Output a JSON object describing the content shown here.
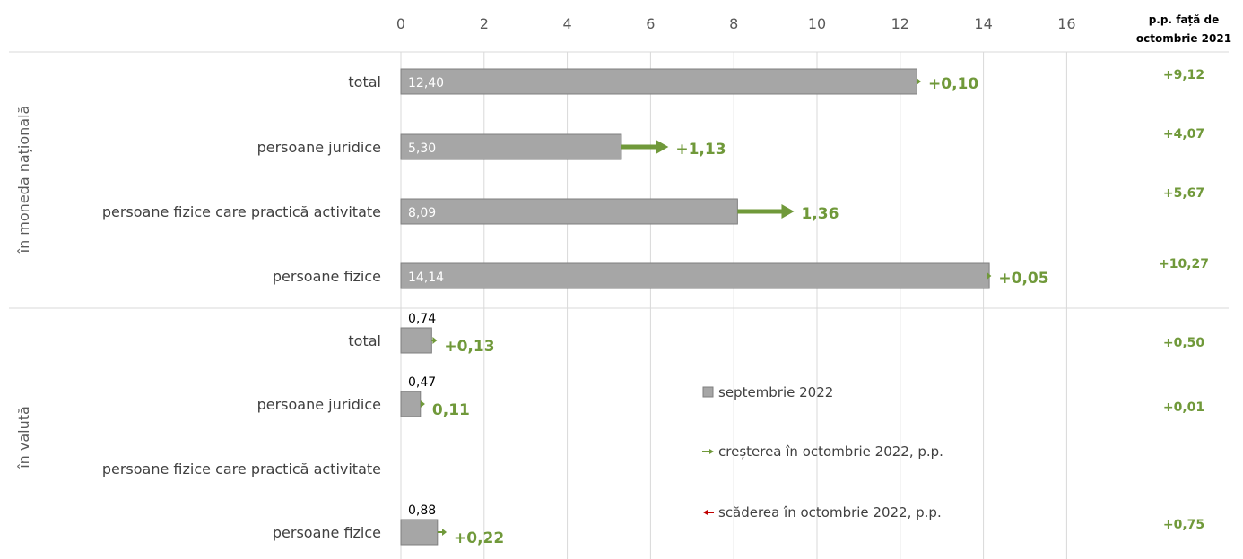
{
  "colors": {
    "bar": "#a6a6a6",
    "bar_border": "#7f7f7f",
    "increase": "#70993a",
    "decrease": "#c00000",
    "grid": "#d9d9d9"
  },
  "side_header": [
    "p.p. față de",
    "octombrie 2021"
  ],
  "chart_data": {
    "type": "bar",
    "orientation": "horizontal",
    "title": "",
    "xlabel": "",
    "ylabel": "",
    "xlim": [
      0,
      16
    ],
    "x_ticks": [
      "0",
      "2",
      "4",
      "6",
      "8",
      "10",
      "12",
      "14",
      "16"
    ],
    "grid": true,
    "legend_position": "bottom-right",
    "groups": [
      {
        "label": "în moneda națională",
        "categories": [
          "total",
          "persoane juridice",
          "persoane fizice care practică activitate",
          "persoane fizice"
        ],
        "september_2022": [
          12.4,
          5.3,
          8.09,
          14.14
        ],
        "september_labels": [
          "12,40",
          "5,30",
          "8,09",
          "14,14"
        ],
        "change_oct_2022": [
          0.1,
          1.13,
          1.36,
          0.05
        ],
        "change_labels": [
          "+0,10",
          "+1,13",
          "1,36",
          "+0,05"
        ],
        "pp_vs_oct_2021": [
          "+9,12",
          "+4,07",
          "+5,67",
          "+10,27"
        ]
      },
      {
        "label": "în valută",
        "categories": [
          "total",
          "persoane juridice",
          "persoane fizice care practică activitate",
          "persoane fizice"
        ],
        "september_2022": [
          0.74,
          0.47,
          null,
          0.88
        ],
        "september_labels": [
          "0,74",
          "0,47",
          "",
          "0,88"
        ],
        "change_oct_2022": [
          0.13,
          0.11,
          null,
          0.22
        ],
        "change_labels": [
          "+0,13",
          "0,11",
          "",
          "+0,22"
        ],
        "pp_vs_oct_2021": [
          "+0,50",
          "+0,01",
          "",
          "+0,75"
        ]
      }
    ],
    "legend": [
      {
        "name": "septembrie 2022",
        "marker": "square"
      },
      {
        "name": "creșterea în octombrie 2022, p.p.",
        "marker": "green-arrow"
      },
      {
        "name": "scăderea în octombrie 2022, p.p.",
        "marker": "red-arrow"
      }
    ]
  }
}
